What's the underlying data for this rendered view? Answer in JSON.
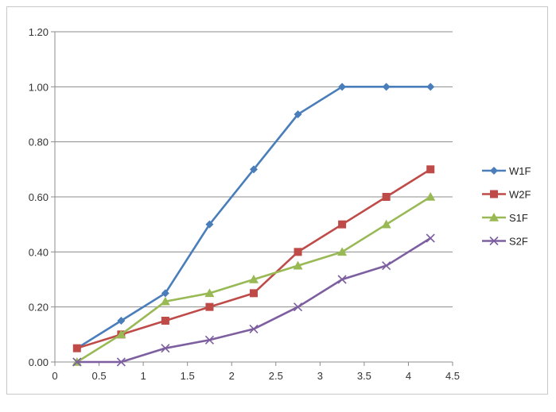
{
  "chart_data": {
    "type": "line",
    "title": "",
    "xlabel": "",
    "ylabel": "",
    "xlim": [
      0,
      4.5
    ],
    "ylim": [
      0,
      1.2
    ],
    "x_ticks": [
      0,
      0.5,
      1,
      1.5,
      2,
      2.5,
      3,
      3.5,
      4,
      4.5
    ],
    "x_tick_labels": [
      "0",
      "0.5",
      "1",
      "1.5",
      "2",
      "2.5",
      "3",
      "3.5",
      "4",
      "4.5"
    ],
    "y_ticks": [
      0,
      0.2,
      0.4,
      0.6,
      0.8,
      1.0,
      1.2
    ],
    "y_tick_labels": [
      "0.00",
      "0.20",
      "0.40",
      "0.60",
      "0.80",
      "1.00",
      "1.20"
    ],
    "grid": "horizontal",
    "legend_position": "right",
    "x": [
      0.25,
      0.75,
      1.25,
      1.75,
      2.25,
      2.75,
      3.25,
      3.75,
      4.25
    ],
    "series": [
      {
        "name": "W1F",
        "marker": "diamond",
        "color": "#4a7ebb",
        "values": [
          0.05,
          0.15,
          0.25,
          0.5,
          0.7,
          0.9,
          1.0,
          1.0,
          1.0
        ]
      },
      {
        "name": "W2F",
        "marker": "square",
        "color": "#be4b48",
        "values": [
          0.05,
          0.1,
          0.15,
          0.2,
          0.25,
          0.4,
          0.5,
          0.6,
          0.7
        ]
      },
      {
        "name": "S1F",
        "marker": "triangle",
        "color": "#98b954",
        "values": [
          0.0,
          0.1,
          0.22,
          0.25,
          0.3,
          0.35,
          0.4,
          0.5,
          0.6
        ]
      },
      {
        "name": "S2F",
        "marker": "x",
        "color": "#7d5fa0",
        "values": [
          0.0,
          0.0,
          0.05,
          0.08,
          0.12,
          0.2,
          0.3,
          0.35,
          0.45
        ]
      }
    ]
  }
}
